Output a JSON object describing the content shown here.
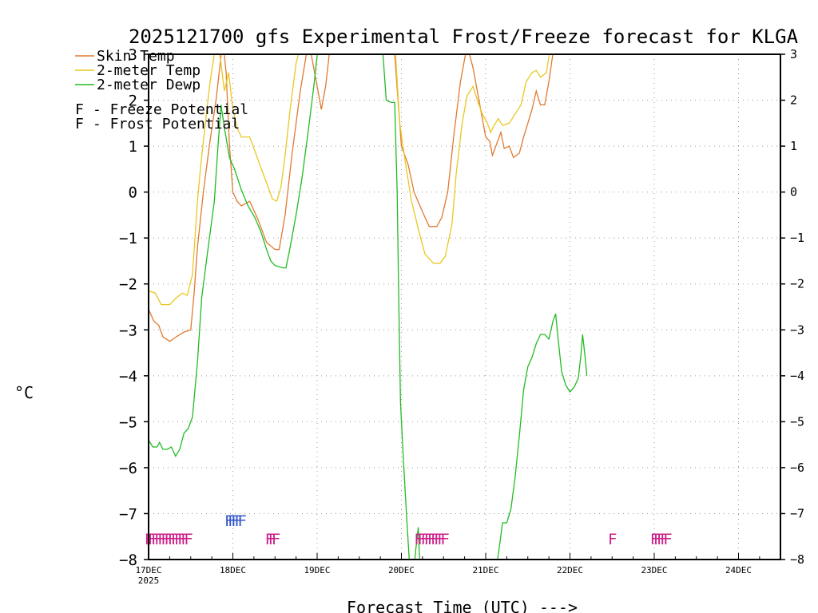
{
  "chart_data": {
    "type": "line",
    "title": "2025121700 gfs Experimental Frost/Freeze forecast for KLGA",
    "xlabel": "Forecast Time (UTC) --->",
    "ylabel": "°C",
    "ylim": [
      -8,
      3
    ],
    "xlim_days": [
      0,
      7.5
    ],
    "y_ticks": [
      -8,
      -7,
      -6,
      -5,
      -4,
      -3,
      -2,
      -1,
      0,
      1,
      2,
      3
    ],
    "x_ticks": [
      {
        "day": 0,
        "label": "17DEC",
        "sub": "2025"
      },
      {
        "day": 1,
        "label": "18DEC"
      },
      {
        "day": 2,
        "label": "19DEC"
      },
      {
        "day": 3,
        "label": "20DEC"
      },
      {
        "day": 4,
        "label": "21DEC"
      },
      {
        "day": 5,
        "label": "22DEC"
      },
      {
        "day": 6,
        "label": "23DEC"
      },
      {
        "day": 7,
        "label": "24DEC"
      }
    ],
    "grid": true,
    "legend": [
      {
        "name": "Skin Temp",
        "color": "#e07a30"
      },
      {
        "name": "2-meter Temp",
        "color": "#e8c820"
      },
      {
        "name": "2-meter Dewp",
        "color": "#22bb22"
      }
    ],
    "flag_legend": [
      {
        "symbol": "F",
        "text": "- Freeze Potential",
        "color": "#cc1f8a"
      },
      {
        "symbol": "F",
        "text": "- Frost Potential",
        "color": "#3355cc"
      }
    ],
    "series": [
      {
        "name": "Skin Temp",
        "color": "#e07a30",
        "points": [
          [
            0,
            -2.55
          ],
          [
            0.06,
            -2.8
          ],
          [
            0.12,
            -2.9
          ],
          [
            0.17,
            -3.15
          ],
          [
            0.25,
            -3.25
          ],
          [
            0.33,
            -3.15
          ],
          [
            0.42,
            -3.05
          ],
          [
            0.5,
            -3.0
          ],
          [
            0.54,
            -2.2
          ],
          [
            0.58,
            -1.2
          ],
          [
            0.65,
            0.0
          ],
          [
            0.72,
            1.0
          ],
          [
            0.8,
            2.0
          ],
          [
            0.85,
            2.8
          ],
          [
            0.88,
            3.3
          ],
          [
            0.92,
            2.6
          ],
          [
            0.96,
            1.0
          ],
          [
            1.0,
            0.0
          ],
          [
            1.05,
            -0.2
          ],
          [
            1.1,
            -0.3
          ],
          [
            1.2,
            -0.2
          ],
          [
            1.3,
            -0.6
          ],
          [
            1.4,
            -1.1
          ],
          [
            1.5,
            -1.25
          ],
          [
            1.55,
            -1.25
          ],
          [
            1.62,
            -0.5
          ],
          [
            1.7,
            0.8
          ],
          [
            1.8,
            2.2
          ],
          [
            1.9,
            3.3
          ],
          [
            1.98,
            2.5
          ],
          [
            2.05,
            1.8
          ],
          [
            2.1,
            2.3
          ],
          [
            2.15,
            3.1
          ],
          [
            2.2,
            3.3
          ]
        ]
      },
      {
        "name": "Skin Temp",
        "color": "#e07a30",
        "points": [
          [
            2.8,
            3.3
          ],
          [
            2.92,
            3.0
          ],
          [
            3.0,
            1.0
          ],
          [
            3.08,
            0.6
          ],
          [
            3.15,
            0.0
          ],
          [
            3.22,
            -0.3
          ],
          [
            3.28,
            -0.55
          ],
          [
            3.33,
            -0.75
          ],
          [
            3.42,
            -0.75
          ],
          [
            3.48,
            -0.55
          ],
          [
            3.55,
            0.0
          ],
          [
            3.62,
            1.2
          ],
          [
            3.7,
            2.4
          ],
          [
            3.78,
            3.2
          ],
          [
            3.85,
            2.7
          ],
          [
            3.92,
            2.0
          ],
          [
            4.0,
            1.2
          ],
          [
            4.05,
            1.1
          ],
          [
            4.08,
            0.8
          ],
          [
            4.12,
            1.0
          ],
          [
            4.18,
            1.3
          ],
          [
            4.22,
            0.95
          ],
          [
            4.28,
            1.0
          ],
          [
            4.33,
            0.75
          ],
          [
            4.4,
            0.85
          ],
          [
            4.45,
            1.2
          ],
          [
            4.5,
            1.5
          ],
          [
            4.55,
            1.8
          ],
          [
            4.6,
            2.2
          ],
          [
            4.65,
            1.9
          ],
          [
            4.7,
            1.9
          ],
          [
            4.75,
            2.4
          ],
          [
            4.82,
            3.3
          ]
        ]
      },
      {
        "name": "2-meter Temp",
        "color": "#e8c820",
        "points": [
          [
            0,
            -2.15
          ],
          [
            0.08,
            -2.2
          ],
          [
            0.15,
            -2.45
          ],
          [
            0.25,
            -2.45
          ],
          [
            0.33,
            -2.3
          ],
          [
            0.4,
            -2.2
          ],
          [
            0.46,
            -2.25
          ],
          [
            0.52,
            -1.8
          ],
          [
            0.58,
            -0.2
          ],
          [
            0.62,
            0.6
          ],
          [
            0.68,
            1.6
          ],
          [
            0.73,
            2.4
          ],
          [
            0.78,
            3.0
          ],
          [
            0.82,
            3.3
          ],
          [
            0.86,
            2.8
          ],
          [
            0.9,
            2.2
          ],
          [
            0.95,
            2.6
          ],
          [
            1.0,
            1.8
          ],
          [
            1.05,
            1.4
          ],
          [
            1.1,
            1.2
          ],
          [
            1.2,
            1.2
          ],
          [
            1.3,
            0.7
          ],
          [
            1.4,
            0.2
          ],
          [
            1.47,
            -0.15
          ],
          [
            1.52,
            -0.2
          ],
          [
            1.57,
            0.1
          ],
          [
            1.62,
            0.8
          ],
          [
            1.68,
            1.8
          ],
          [
            1.75,
            2.8
          ],
          [
            1.82,
            3.3
          ]
        ]
      },
      {
        "name": "2-meter Temp",
        "color": "#e8c820",
        "points": [
          [
            2.92,
            3.3
          ],
          [
            2.98,
            1.5
          ],
          [
            3.05,
            0.6
          ],
          [
            3.12,
            -0.2
          ],
          [
            3.2,
            -0.8
          ],
          [
            3.28,
            -1.35
          ],
          [
            3.38,
            -1.55
          ],
          [
            3.46,
            -1.55
          ],
          [
            3.52,
            -1.4
          ],
          [
            3.6,
            -0.7
          ],
          [
            3.65,
            0.4
          ],
          [
            3.72,
            1.5
          ],
          [
            3.78,
            2.1
          ],
          [
            3.85,
            2.3
          ],
          [
            3.9,
            2.0
          ],
          [
            3.96,
            1.7
          ],
          [
            4.02,
            1.5
          ],
          [
            4.06,
            1.3
          ],
          [
            4.1,
            1.45
          ],
          [
            4.15,
            1.6
          ],
          [
            4.2,
            1.45
          ],
          [
            4.28,
            1.5
          ],
          [
            4.35,
            1.7
          ],
          [
            4.42,
            1.9
          ],
          [
            4.48,
            2.4
          ],
          [
            4.55,
            2.6
          ],
          [
            4.6,
            2.65
          ],
          [
            4.65,
            2.5
          ],
          [
            4.72,
            2.6
          ],
          [
            4.78,
            3.3
          ]
        ]
      },
      {
        "name": "2-meter Dewp",
        "color": "#22bb22",
        "points": [
          [
            0,
            -5.4
          ],
          [
            0.05,
            -5.55
          ],
          [
            0.1,
            -5.55
          ],
          [
            0.13,
            -5.45
          ],
          [
            0.17,
            -5.6
          ],
          [
            0.22,
            -5.6
          ],
          [
            0.27,
            -5.55
          ],
          [
            0.32,
            -5.75
          ],
          [
            0.37,
            -5.6
          ],
          [
            0.42,
            -5.25
          ],
          [
            0.47,
            -5.15
          ],
          [
            0.52,
            -4.9
          ],
          [
            0.58,
            -3.7
          ],
          [
            0.63,
            -2.3
          ],
          [
            0.7,
            -1.3
          ],
          [
            0.78,
            -0.2
          ],
          [
            0.82,
            0.9
          ],
          [
            0.86,
            1.9
          ],
          [
            0.9,
            1.4
          ],
          [
            0.96,
            0.75
          ],
          [
            1.02,
            0.5
          ],
          [
            1.1,
            0.05
          ],
          [
            1.18,
            -0.3
          ],
          [
            1.26,
            -0.55
          ],
          [
            1.33,
            -0.85
          ],
          [
            1.4,
            -1.25
          ],
          [
            1.45,
            -1.5
          ],
          [
            1.5,
            -1.6
          ],
          [
            1.6,
            -1.65
          ],
          [
            1.63,
            -1.65
          ],
          [
            1.68,
            -1.2
          ],
          [
            1.75,
            -0.5
          ],
          [
            1.82,
            0.3
          ],
          [
            1.9,
            1.4
          ],
          [
            1.96,
            2.3
          ],
          [
            2.02,
            3.3
          ]
        ]
      },
      {
        "name": "2-meter Dewp",
        "color": "#22bb22",
        "points": [
          [
            2.77,
            3.3
          ],
          [
            2.82,
            2.0
          ],
          [
            2.88,
            1.95
          ],
          [
            2.92,
            1.95
          ],
          [
            2.95,
            0.0
          ],
          [
            2.97,
            -2.5
          ],
          [
            2.99,
            -4.6
          ],
          [
            3.02,
            -5.7
          ],
          [
            3.06,
            -7.0
          ],
          [
            3.08,
            -7.6
          ],
          [
            3.1,
            -8.2
          ]
        ]
      },
      {
        "name": "2-meter Dewp",
        "color": "#22bb22",
        "points": [
          [
            3.15,
            -8.2
          ],
          [
            3.17,
            -7.8
          ],
          [
            3.2,
            -7.3
          ],
          [
            3.22,
            -8.2
          ]
        ]
      },
      {
        "name": "2-meter Dewp",
        "color": "#22bb22",
        "points": [
          [
            4.12,
            -8.2
          ],
          [
            4.15,
            -7.9
          ],
          [
            4.2,
            -7.2
          ],
          [
            4.25,
            -7.2
          ],
          [
            4.3,
            -6.9
          ],
          [
            4.35,
            -6.2
          ],
          [
            4.4,
            -5.3
          ],
          [
            4.45,
            -4.3
          ],
          [
            4.5,
            -3.8
          ],
          [
            4.55,
            -3.6
          ],
          [
            4.6,
            -3.3
          ],
          [
            4.65,
            -3.1
          ],
          [
            4.7,
            -3.1
          ],
          [
            4.75,
            -3.2
          ],
          [
            4.8,
            -2.8
          ],
          [
            4.83,
            -2.65
          ],
          [
            4.86,
            -3.2
          ],
          [
            4.9,
            -3.9
          ],
          [
            4.95,
            -4.2
          ],
          [
            5.0,
            -4.35
          ],
          [
            5.05,
            -4.25
          ],
          [
            5.1,
            -4.05
          ],
          [
            5.13,
            -3.55
          ],
          [
            5.15,
            -3.1
          ],
          [
            5.18,
            -3.6
          ],
          [
            5.2,
            -4.0
          ]
        ]
      }
    ],
    "freeze_flags": [
      {
        "day": -0.05,
        "text": "FFFFFFFFFFFFF"
      },
      {
        "day": 1.38,
        "text": "FFF"
      },
      {
        "day": 3.15,
        "text": "FFFFFFFFF"
      },
      {
        "day": 5.45,
        "text": "F"
      },
      {
        "day": 5.95,
        "text": "FFFFF"
      }
    ],
    "frost_flags": [
      {
        "day": 0.9,
        "text": "FFFFF"
      }
    ]
  }
}
